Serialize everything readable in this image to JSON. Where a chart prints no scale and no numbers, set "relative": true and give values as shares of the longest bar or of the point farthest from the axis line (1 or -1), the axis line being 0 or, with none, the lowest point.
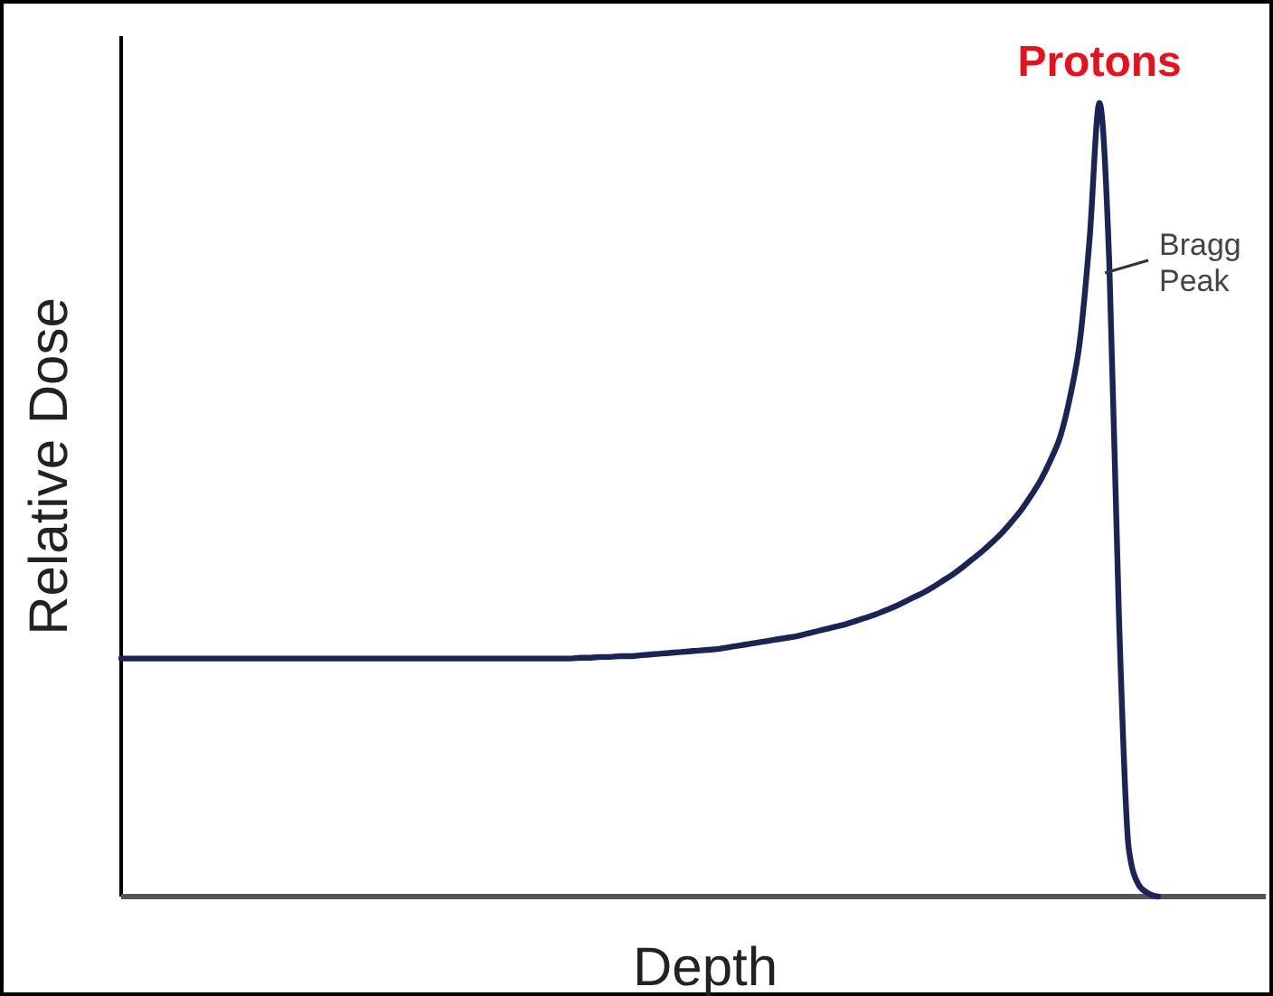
{
  "chart_data": {
    "type": "line",
    "title": "Protons",
    "xlabel": "Depth",
    "ylabel": "Relative Dose",
    "relative": true,
    "annotations": [
      "Bragg\nPeak"
    ],
    "categories": [
      null,
      null,
      null,
      null,
      null,
      null,
      null,
      null,
      null,
      null,
      null,
      null,
      null,
      null,
      null,
      null,
      null,
      null,
      null,
      null,
      null,
      null,
      null,
      null,
      null,
      null,
      null,
      null,
      null,
      null,
      null,
      null,
      null,
      null,
      null,
      null,
      null,
      null,
      null,
      null,
      null,
      null,
      null,
      null,
      null,
      null,
      null,
      null,
      null,
      null,
      null,
      null,
      null,
      null,
      null,
      null,
      null,
      null,
      null,
      null,
      null,
      null,
      null,
      null,
      null,
      null,
      null,
      null,
      null,
      null,
      null,
      null,
      null,
      null,
      null,
      null,
      null,
      null,
      null,
      null,
      null,
      null,
      null,
      null,
      null,
      null,
      null,
      null,
      null,
      null,
      null,
      null,
      null,
      null,
      null,
      null,
      null,
      null,
      null,
      null,
      null,
      null,
      null,
      null,
      null,
      null,
      null,
      null,
      null,
      null,
      null,
      null,
      null,
      null,
      null,
      null,
      null,
      null
    ],
    "series": [
      {
        "color": "#1a2456",
        "values": [
          0.3,
          0.3,
          0.3,
          0.3,
          0.3,
          0.3,
          0.3,
          0.3,
          0.3,
          0.3,
          0.3,
          0.3,
          0.3,
          0.3,
          0.3,
          0.3,
          0.3,
          0.3,
          0.3,
          0.3,
          0.3,
          0.3,
          0.3,
          0.3,
          0.3,
          0.3,
          0.3,
          0.3,
          0.3,
          0.3,
          0.3,
          0.3,
          0.3,
          0.3,
          0.3,
          0.3,
          0.3,
          0.3,
          0.3,
          0.3,
          0.3,
          0.3,
          0.3,
          0.3,
          0.3,
          0.3,
          0.3,
          0.301,
          0.301,
          0.302,
          0.302,
          0.303,
          0.303,
          0.304,
          0.305,
          0.306,
          0.307,
          0.308,
          0.309,
          0.31,
          0.311,
          0.312,
          0.314,
          0.316,
          0.318,
          0.32,
          0.322,
          0.324,
          0.326,
          0.328,
          0.331,
          0.334,
          0.337,
          0.34,
          0.343,
          0.347,
          0.351,
          0.355,
          0.36,
          0.365,
          0.371,
          0.377,
          0.383,
          0.39,
          0.398,
          0.406,
          0.415,
          0.425,
          0.435,
          0.446,
          0.458,
          0.472,
          0.487,
          0.505,
          0.525,
          0.55,
          0.58,
          0.63,
          0.7,
          0.83,
          1,
          0.8,
          0.35,
          0.06,
          0.015,
          0.004,
          0,
          null,
          null,
          null,
          null,
          null,
          null,
          null,
          null,
          null,
          null,
          null
        ]
      }
    ]
  }
}
